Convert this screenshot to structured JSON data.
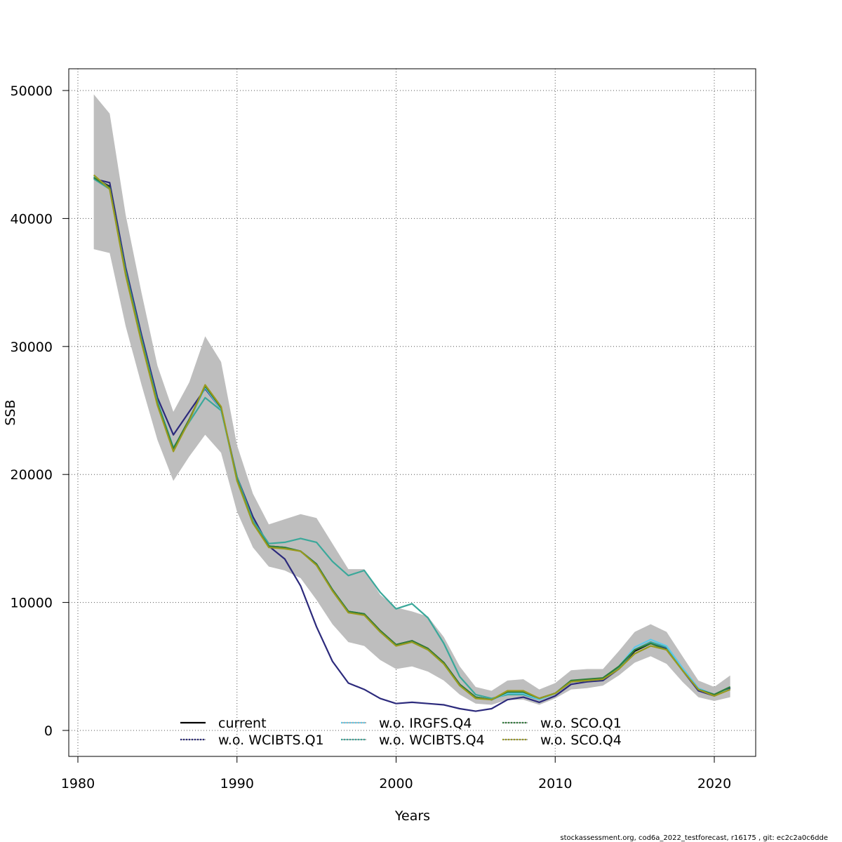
{
  "chart_data": {
    "type": "line",
    "title": "",
    "xlabel": "Years",
    "ylabel": "SSB",
    "xlim": [
      1980,
      2022
    ],
    "ylim": [
      -2000,
      52000
    ],
    "x_ticks": [
      1980,
      1990,
      2000,
      2010,
      2020
    ],
    "y_ticks": [
      0,
      10000,
      20000,
      30000,
      40000,
      50000
    ],
    "grid": true,
    "legend_position": "bottom",
    "x": [
      1981,
      1982,
      1983,
      1984,
      1985,
      1986,
      1987,
      1988,
      1989,
      1990,
      1991,
      1992,
      1993,
      1994,
      1995,
      1996,
      1997,
      1998,
      1999,
      2000,
      2001,
      2002,
      2003,
      2004,
      2005,
      2006,
      2007,
      2008,
      2009,
      2010,
      2011,
      2012,
      2013,
      2014,
      2015,
      2016,
      2017,
      2018,
      2019,
      2020,
      2021
    ],
    "confidence_band": {
      "color": "#bebebe",
      "lower": [
        37600,
        37300,
        31600,
        27000,
        22700,
        19500,
        21400,
        23100,
        21700,
        17100,
        14300,
        12800,
        12500,
        11900,
        10200,
        8300,
        6900,
        6600,
        5500,
        4800,
        5000,
        4600,
        3900,
        2800,
        2100,
        2000,
        2400,
        2400,
        2000,
        2500,
        3200,
        3300,
        3500,
        4300,
        5300,
        5800,
        5200,
        3800,
        2600,
        2300,
        2600
      ]
    },
    "upper_band": {
      "upper": [
        49700,
        48200,
        40300,
        34200,
        28500,
        24900,
        27200,
        30800,
        28800,
        22300,
        18500,
        16100,
        16500,
        16900,
        16600,
        14600,
        12600,
        12600,
        10600,
        9600,
        9300,
        8900,
        7300,
        5000,
        3400,
        3100,
        3900,
        4000,
        3200,
        3700,
        4700,
        4800,
        4800,
        6200,
        7700,
        8300,
        7700,
        5800,
        3900,
        3400,
        4300
      ]
    },
    "series": [
      {
        "name": "current",
        "color": "#000000",
        "dash": "",
        "values": [
          43200,
          42500,
          35800,
          30500,
          25600,
          22000,
          24300,
          26900,
          25200,
          19600,
          16300,
          14400,
          14300,
          14000,
          13000,
          11000,
          9300,
          9100,
          7800,
          6700,
          7000,
          6400,
          5300,
          3600,
          2600,
          2400,
          3000,
          3000,
          2500,
          2900,
          3800,
          3900,
          4000,
          4900,
          6200,
          6800,
          6400,
          4800,
          3200,
          2800,
          3300
        ]
      },
      {
        "name": "w.o. WCIBTS.Q1",
        "color": "#2c2a7c",
        "dash": "3 3",
        "values": [
          43100,
          42800,
          36200,
          30900,
          26000,
          23100,
          24900,
          26700,
          25100,
          19800,
          16700,
          14400,
          13400,
          11300,
          8100,
          5400,
          3700,
          3200,
          2500,
          2100,
          2200,
          2100,
          2000,
          1700,
          1500,
          1700,
          2400,
          2600,
          2200,
          2700,
          3600,
          3800,
          3900,
          4800,
          6300,
          6900,
          6400,
          4700,
          3100,
          2700,
          3300
        ]
      },
      {
        "name": "w.o. IRGFS.Q4",
        "color": "#5fc8e8",
        "dash": "3 3",
        "values": [
          43300,
          42400,
          35700,
          30400,
          25500,
          21900,
          24200,
          26800,
          25100,
          19500,
          16200,
          14400,
          14300,
          14000,
          13000,
          11000,
          9300,
          9100,
          7700,
          6700,
          6900,
          6300,
          5200,
          3500,
          2600,
          2400,
          2900,
          2900,
          2400,
          2900,
          3800,
          3900,
          4100,
          5000,
          6500,
          7100,
          6600,
          4900,
          3300,
          2800,
          3200
        ]
      },
      {
        "name": "w.o. WCIBTS.Q4",
        "color": "#3aa89a",
        "dash": "3 3",
        "values": [
          43100,
          42300,
          35900,
          30600,
          25700,
          22100,
          24100,
          26000,
          25000,
          19800,
          16400,
          14600,
          14700,
          15000,
          14700,
          13200,
          12100,
          12500,
          10800,
          9500,
          9900,
          8800,
          6800,
          4200,
          2800,
          2500,
          2800,
          2800,
          2400,
          2900,
          3800,
          3900,
          4000,
          4900,
          6300,
          6900,
          6500,
          4800,
          3200,
          2800,
          3400
        ]
      },
      {
        "name": "w.o. SCO.Q1",
        "color": "#2f7d3a",
        "dash": "3 3",
        "values": [
          43200,
          42400,
          35700,
          30400,
          25500,
          22000,
          24300,
          26900,
          25200,
          19600,
          16200,
          14400,
          14300,
          14000,
          13000,
          11000,
          9300,
          9100,
          7800,
          6700,
          7000,
          6400,
          5300,
          3600,
          2600,
          2400,
          3000,
          3000,
          2500,
          2900,
          3900,
          4000,
          4100,
          5000,
          6300,
          6800,
          6300,
          4700,
          3200,
          2800,
          3400
        ]
      },
      {
        "name": "w.o. SCO.Q4",
        "color": "#9a9a1e",
        "dash": "3 3",
        "values": [
          43400,
          42300,
          35600,
          30300,
          25400,
          21800,
          24200,
          27000,
          25300,
          19500,
          16200,
          14300,
          14200,
          14000,
          12900,
          10900,
          9200,
          9000,
          7700,
          6600,
          6900,
          6300,
          5200,
          3500,
          2500,
          2400,
          3100,
          3100,
          2500,
          2900,
          3800,
          3900,
          4000,
          4800,
          6000,
          6600,
          6300,
          4700,
          3200,
          2700,
          3200
        ]
      }
    ]
  },
  "legend": {
    "items": [
      {
        "label": "current",
        "color": "#000000"
      },
      {
        "label": "w.o. WCIBTS.Q1",
        "color": "#2c2a7c"
      },
      {
        "label": "w.o. IRGFS.Q4",
        "color": "#5fc8e8"
      },
      {
        "label": "w.o. WCIBTS.Q4",
        "color": "#3aa89a"
      },
      {
        "label": "w.o. SCO.Q1",
        "color": "#2f7d3a"
      },
      {
        "label": "w.o. SCO.Q4",
        "color": "#9a9a1e"
      }
    ]
  },
  "footer": {
    "text": "stockassessment.org, cod6a_2022_testforecast, r16175 , git: ec2c2a0c6dde"
  }
}
